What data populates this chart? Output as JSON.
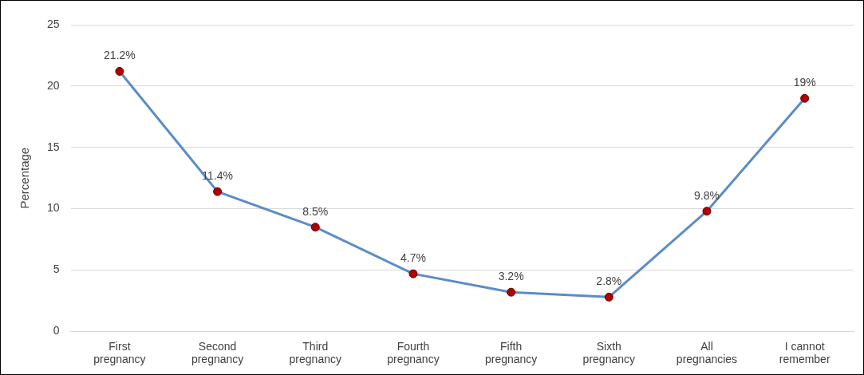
{
  "chart_data": {
    "type": "line",
    "ylabel": "Percentage",
    "categories": [
      "First pregnancy",
      "Second pregnancy",
      "Third pregnancy",
      "Fourth pregnancy",
      "Fifth pregnancy",
      "Sixth pregnancy",
      "All pregnancies",
      "I cannot remember"
    ],
    "series": [
      {
        "color": "#5b8cc8",
        "values": [
          21.2,
          11.4,
          8.5,
          4.7,
          3.2,
          2.8,
          9.8,
          19
        ],
        "value_labels": [
          "21.2%",
          "11.4%",
          "8.5%",
          "4.7%",
          "3.2%",
          "2.8%",
          "9.8%",
          "19%"
        ]
      }
    ],
    "marker": "circle",
    "ylim": [
      0,
      25
    ],
    "yticks": [
      0,
      5,
      10,
      15,
      20,
      25
    ],
    "grid": "y",
    "legend": false
  }
}
